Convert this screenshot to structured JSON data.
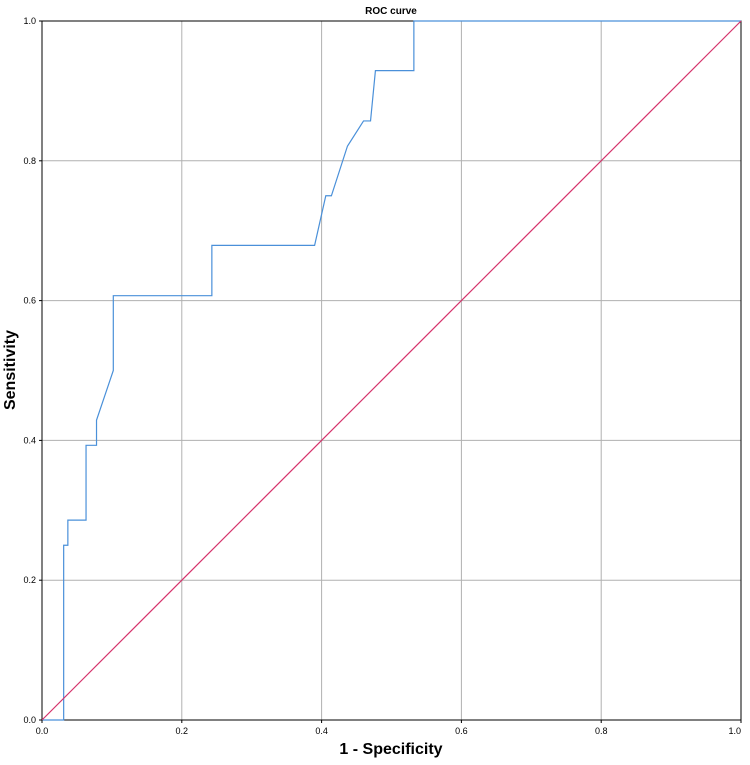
{
  "chart_data": {
    "type": "line",
    "title": "ROC curve",
    "xlabel": "1 - Specificity",
    "ylabel": "Sensitivity",
    "xlim": [
      0,
      1
    ],
    "ylim": [
      0,
      1
    ],
    "grid": true,
    "x_ticks": [
      "0.0",
      "0.2",
      "0.4",
      "0.6",
      "0.8",
      "1.0"
    ],
    "y_ticks": [
      "0.0",
      "0.2",
      "0.4",
      "0.6",
      "0.8",
      "1.0"
    ],
    "series": [
      {
        "color": "#4a90d9",
        "x": [
          0.0,
          0.031,
          0.031,
          0.037,
          0.037,
          0.063,
          0.063,
          0.078,
          0.078,
          0.102,
          0.102,
          0.243,
          0.243,
          0.39,
          0.406,
          0.414,
          0.437,
          0.46,
          0.47,
          0.477,
          0.532,
          0.532,
          1.0
        ],
        "y": [
          0.0,
          0.0,
          0.25,
          0.25,
          0.286,
          0.286,
          0.393,
          0.393,
          0.429,
          0.5,
          0.607,
          0.607,
          0.679,
          0.679,
          0.75,
          0.75,
          0.821,
          0.857,
          0.857,
          0.929,
          0.929,
          1.0,
          1.0
        ]
      },
      {
        "color": "#d6336c",
        "x": [
          0,
          1
        ],
        "y": [
          0,
          1
        ]
      }
    ]
  }
}
